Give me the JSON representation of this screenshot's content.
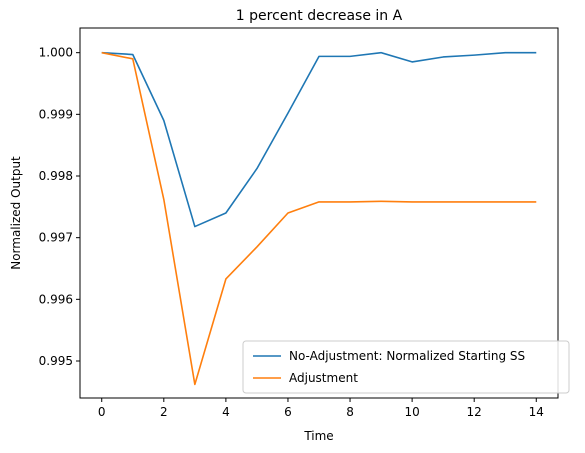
{
  "chart_data": {
    "type": "line",
    "title": "1 percent decrease in A",
    "xlabel": "Time",
    "ylabel": "Normalized Output",
    "xlim": [
      -0.7,
      14.7
    ],
    "ylim": [
      0.9944,
      1.0004
    ],
    "xticks": [
      0,
      2,
      4,
      6,
      8,
      10,
      12,
      14
    ],
    "yticks": [
      0.995,
      0.996,
      0.997,
      0.998,
      0.999,
      1.0
    ],
    "ytick_labels": [
      "0.995",
      "0.996",
      "0.997",
      "0.998",
      "0.999",
      "1.000"
    ],
    "grid": false,
    "legend_position": "lower-right",
    "x": [
      0,
      1,
      2,
      3,
      4,
      5,
      6,
      7,
      8,
      9,
      10,
      11,
      12,
      13,
      14
    ],
    "series": [
      {
        "name": "No-Adjustment: Normalized Starting SS",
        "color": "#1f77b4",
        "values": [
          1.0,
          0.99997,
          0.9989,
          0.99718,
          0.9974,
          0.99812,
          0.99902,
          0.99994,
          0.99994,
          1.0,
          0.99985,
          0.99993,
          0.99996,
          1.0,
          1.0
        ]
      },
      {
        "name": "Adjustment",
        "color": "#ff7f0e",
        "values": [
          1.0,
          0.9999,
          0.99762,
          0.99462,
          0.99633,
          0.99685,
          0.9974,
          0.99758,
          0.99758,
          0.99759,
          0.99758,
          0.99758,
          0.99758,
          0.99758,
          0.99758
        ]
      }
    ]
  }
}
